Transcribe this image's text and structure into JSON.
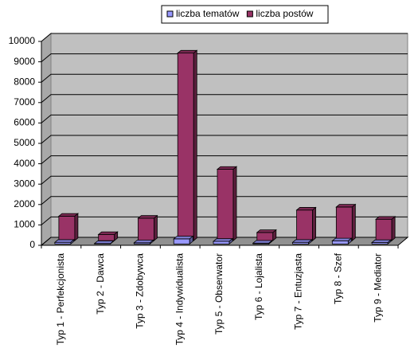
{
  "chart_data": {
    "type": "bar3d",
    "categories": [
      "Typ 1 - Perfekcjonista",
      "Typ 2 - Dawca",
      "Typ 3 - Zdobywca",
      "Typ 4 - Indywidualista",
      "Typ 5 - Obserwator",
      "Typ 6 - Lojalista",
      "Typ 7 - Entuzjasta",
      "Typ 8 - Szef",
      "Typ 9 - Mediator"
    ],
    "series": [
      {
        "name": "liczba tematów",
        "color": "#9999ff",
        "values": [
          80,
          20,
          60,
          250,
          130,
          40,
          80,
          150,
          70
        ]
      },
      {
        "name": "liczba postów",
        "color": "#993366",
        "values": [
          1200,
          300,
          1100,
          9200,
          3500,
          400,
          1500,
          1650,
          1050
        ]
      }
    ],
    "ylim": [
      0,
      10000
    ],
    "yticks": [
      0,
      1000,
      2000,
      3000,
      4000,
      5000,
      6000,
      7000,
      8000,
      9000,
      10000
    ],
    "grid": true,
    "legend": "top"
  }
}
